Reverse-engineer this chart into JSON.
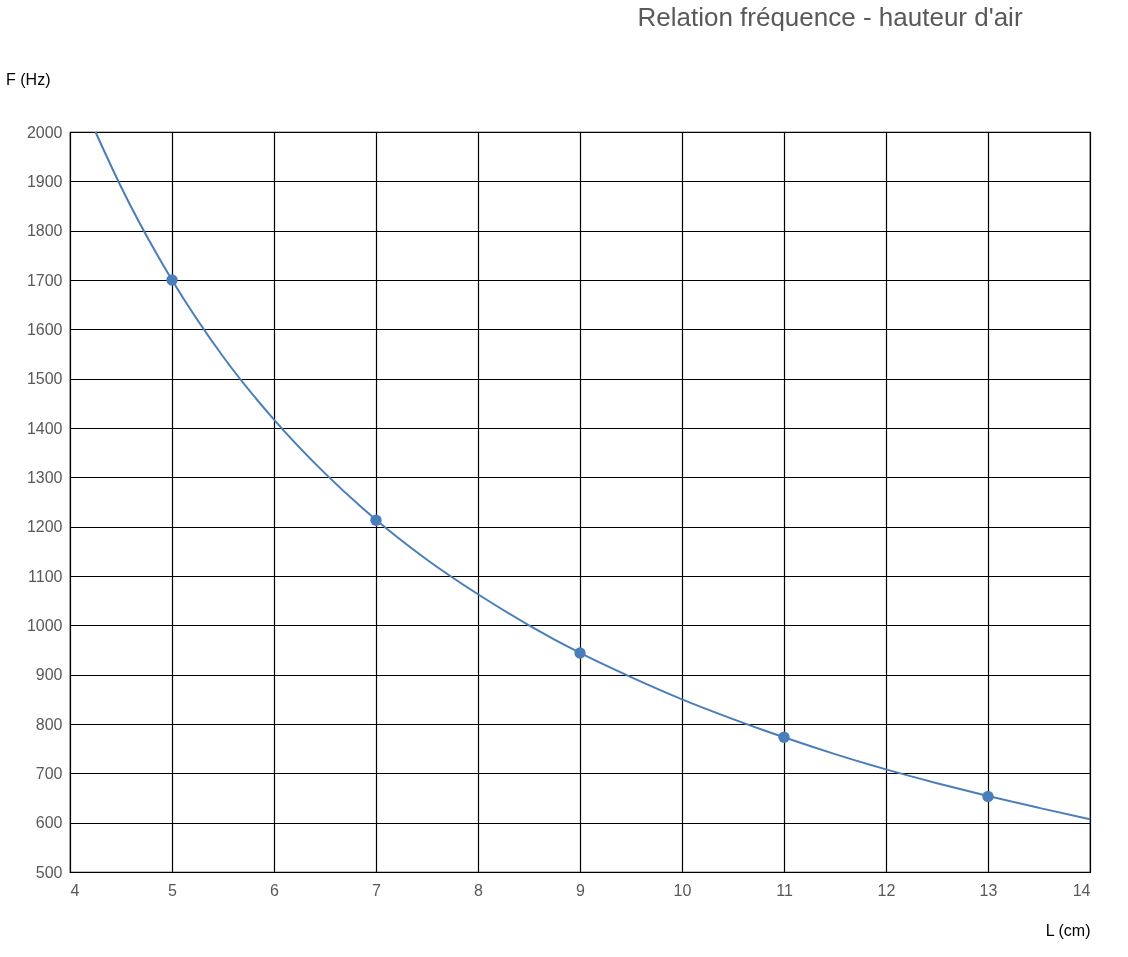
{
  "chart_data": {
    "type": "scatter",
    "title": "Relation fréquence - hauteur d'air",
    "xlabel": "L (cm)",
    "ylabel": "F (Hz)",
    "xlim": [
      4,
      14
    ],
    "ylim": [
      500,
      2000
    ],
    "xticks": [
      4,
      5,
      6,
      7,
      8,
      9,
      10,
      11,
      12,
      13,
      14
    ],
    "yticks": [
      500,
      600,
      700,
      800,
      900,
      1000,
      1100,
      1200,
      1300,
      1400,
      1500,
      1600,
      1700,
      1800,
      1900,
      2000
    ],
    "grid": true,
    "series": [
      {
        "color": "#4a7ebb",
        "marker": "circle",
        "x": [
          5,
          7,
          9,
          11,
          13
        ],
        "values": [
          1700,
          1213,
          944,
          773,
          653
        ]
      },
      {
        "type": "line",
        "color": "#4a7ebb",
        "x": [
          4.25,
          4.5,
          5,
          5.5,
          6,
          6.5,
          7,
          7.5,
          8,
          8.5,
          9,
          9.5,
          10,
          10.5,
          11,
          11.5,
          12,
          12.5,
          13,
          13.5,
          14
        ],
        "values": [
          2000,
          1889,
          1700,
          1545,
          1417,
          1308,
          1214,
          1133,
          1063,
          1000,
          944,
          895,
          850,
          810,
          773,
          739,
          708,
          680,
          654,
          630,
          607
        ]
      }
    ]
  }
}
